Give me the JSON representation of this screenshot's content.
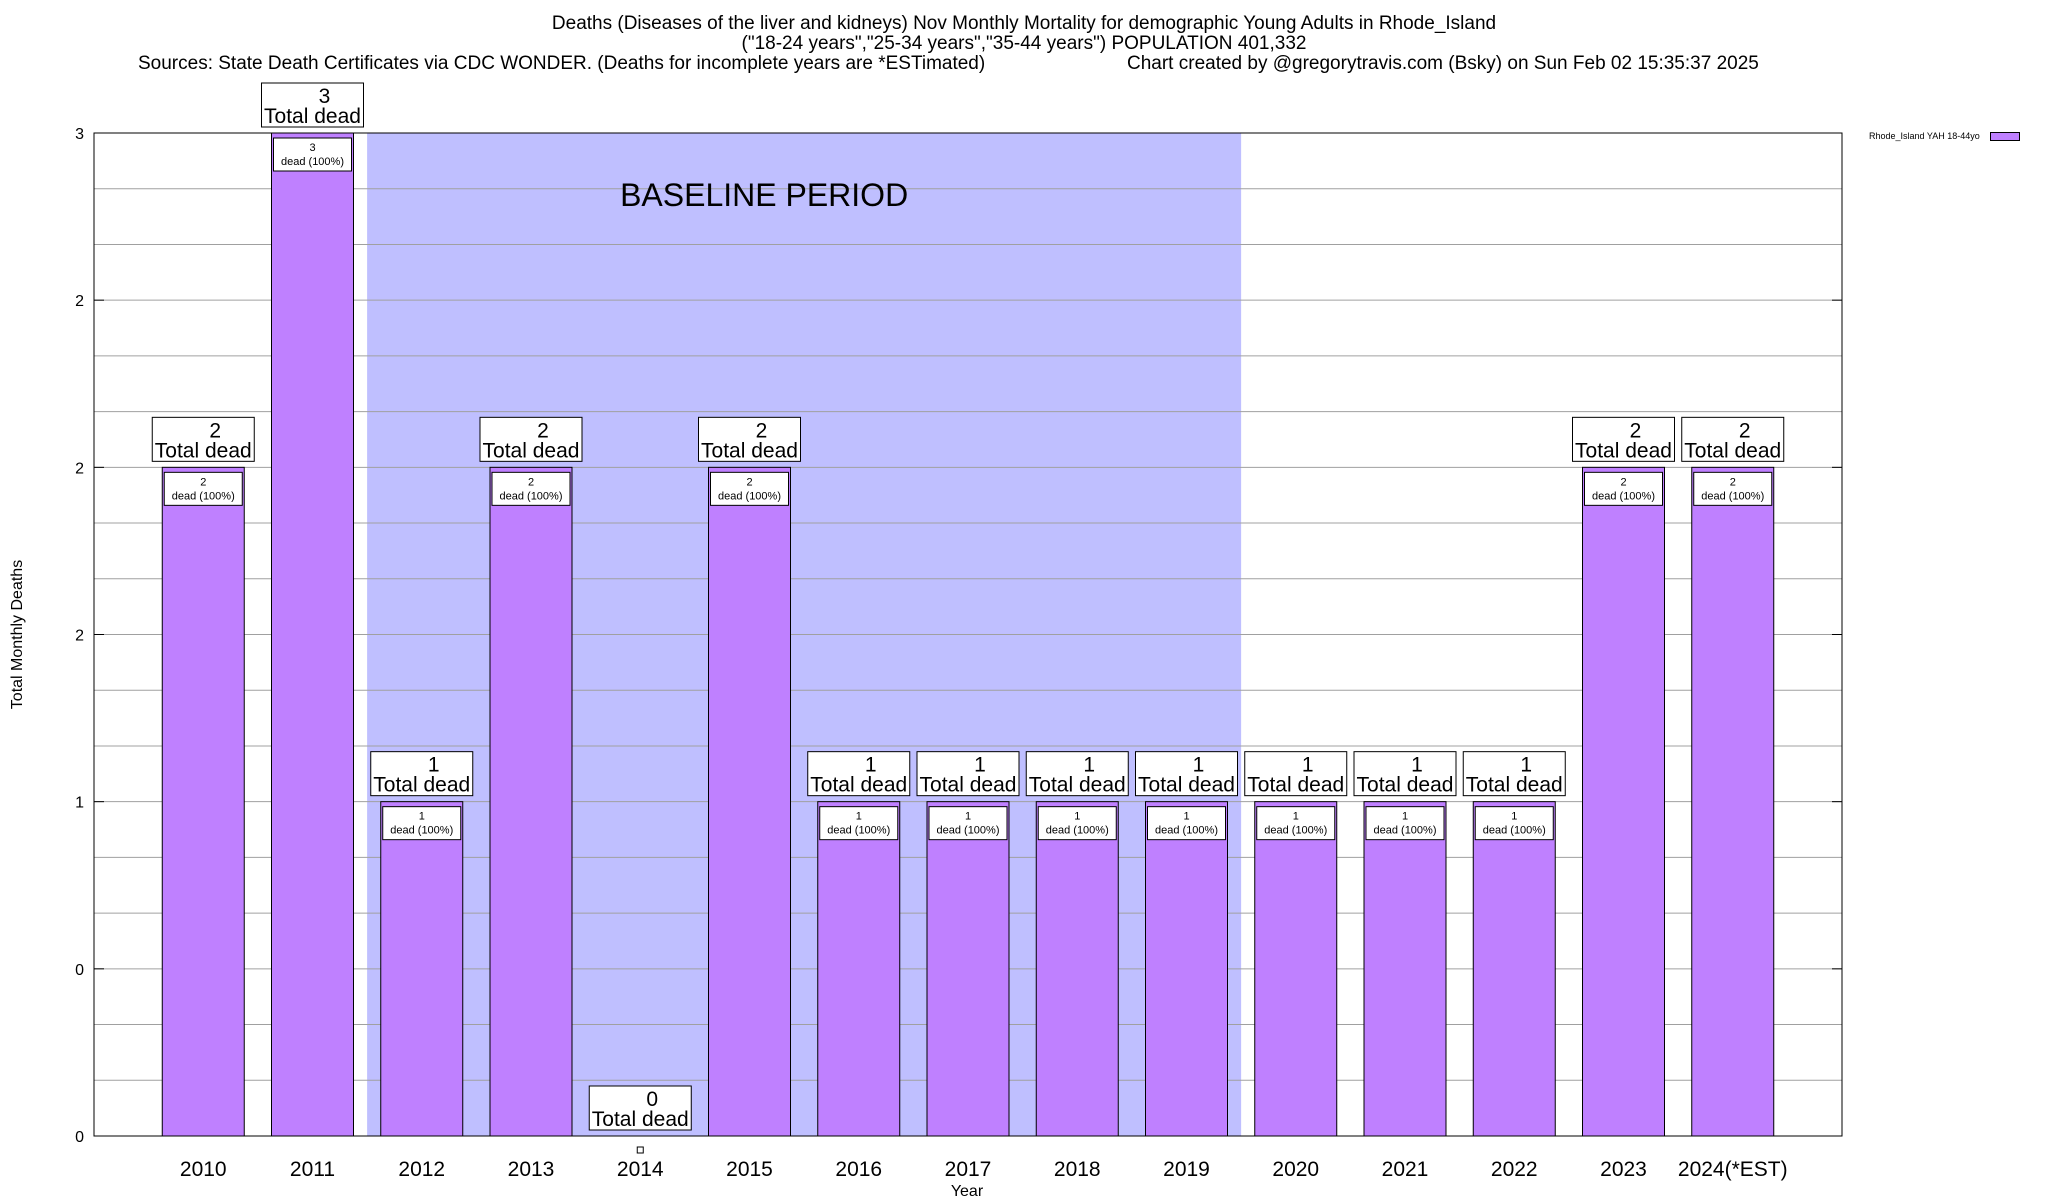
{
  "title_lines": [
    "Deaths (Diseases of the liver and kidneys) Nov Monthly Mortality for demographic Young Adults in Rhode_Island",
    "(\"18-24 years\",\"25-34 years\",\"35-44 years\") POPULATION 401,332",
    "Sources: State Death Certificates via CDC WONDER. (Deaths for incomplete years are *ESTimated)",
    "Chart created by @gregorytravis.com (Bsky) on Sun Feb 02 15:35:37 2025"
  ],
  "legend": {
    "label": "Rhode_Island YAH 18-44yo",
    "position": "top-right, outside plot"
  },
  "colors": {
    "bar": "#bf80ff",
    "baseline_band": "#bfbfff",
    "grid": "#a0a0a0"
  },
  "chart_data": {
    "type": "bar",
    "categories": [
      "2010",
      "2011",
      "2012",
      "2013",
      "2014",
      "2015",
      "2016",
      "2017",
      "2018",
      "2019",
      "2020",
      "2021",
      "2022",
      "2023",
      "2024(*EST)"
    ],
    "series": [
      {
        "name": "Rhode_Island YAH 18-44yo",
        "values": [
          2,
          3,
          1,
          2,
          0,
          2,
          1,
          1,
          1,
          1,
          1,
          1,
          1,
          2,
          2
        ]
      }
    ],
    "xlabel": "Year",
    "ylabel": "Total Monthly Deaths",
    "ylim": [
      0,
      3
    ],
    "ytick_labels": [
      "0",
      "0",
      "1",
      "2",
      "2",
      "2",
      "3"
    ],
    "grid": true,
    "value_label_suffix": "Total dead",
    "inner_label_suffix": "dead (100%)",
    "baseline": {
      "label": "BASELINE PERIOD",
      "from": "2012",
      "to": "2019"
    }
  }
}
